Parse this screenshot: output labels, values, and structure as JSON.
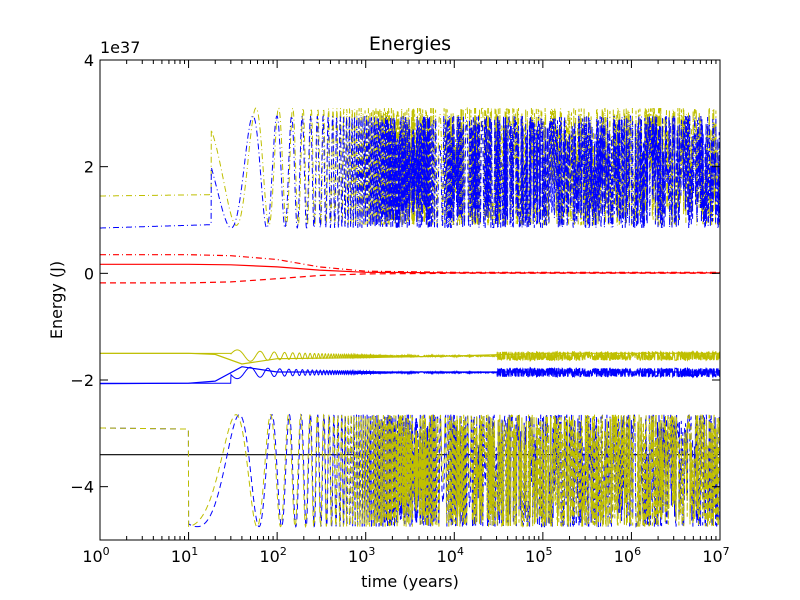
{
  "chart_data": {
    "type": "line",
    "title": "Energies",
    "xlabel": "time (years)",
    "ylabel": "Energy (J)",
    "y_offset_label": "1e37",
    "xscale": "log",
    "xlim": [
      1,
      10000000
    ],
    "ylim": [
      -5,
      4
    ],
    "x_tick_labels": [
      {
        "value": 1,
        "base": "10",
        "exp": "0"
      },
      {
        "value": 10,
        "base": "10",
        "exp": "1"
      },
      {
        "value": 100,
        "base": "10",
        "exp": "2"
      },
      {
        "value": 1000,
        "base": "10",
        "exp": "3"
      },
      {
        "value": 10000,
        "base": "10",
        "exp": "4"
      },
      {
        "value": 100000,
        "base": "10",
        "exp": "5"
      },
      {
        "value": 1000000,
        "base": "10",
        "exp": "6"
      },
      {
        "value": 10000000,
        "base": "10",
        "exp": "7"
      }
    ],
    "y_ticks": [
      {
        "value": 4,
        "label": "4"
      },
      {
        "value": 2,
        "label": "2"
      },
      {
        "value": 0,
        "label": "0"
      },
      {
        "value": -2,
        "label": "−2"
      },
      {
        "value": -4,
        "label": "−4"
      }
    ],
    "colors": {
      "yellow": "#bfbf00",
      "blue": "#0000ff",
      "red": "#ff0000",
      "black": "#000000"
    },
    "series": [
      {
        "id": "red-solid",
        "color": "red",
        "style": "solid",
        "x": [
          1,
          10,
          30,
          100,
          300,
          1000,
          10000,
          10000000
        ],
        "y": [
          0.17,
          0.17,
          0.16,
          0.12,
          0.06,
          0.02,
          0.01,
          0.01
        ]
      },
      {
        "id": "red-dashdot",
        "color": "red",
        "style": "dashdot",
        "x": [
          1,
          10,
          30,
          100,
          300,
          1000,
          10000,
          10000000
        ],
        "y": [
          0.35,
          0.35,
          0.33,
          0.26,
          0.12,
          0.04,
          0.02,
          0.02
        ]
      },
      {
        "id": "red-dashed",
        "color": "red",
        "style": "dashed",
        "x": [
          1,
          10,
          30,
          100,
          300,
          1000,
          10000,
          10000000
        ],
        "y": [
          -0.18,
          -0.18,
          -0.16,
          -0.1,
          -0.04,
          -0.01,
          0.0,
          0.0
        ]
      },
      {
        "id": "black-total",
        "color": "black",
        "style": "solid",
        "x": [
          1,
          10000000
        ],
        "y": [
          -3.4,
          -3.4
        ]
      },
      {
        "id": "yellow-band-upper",
        "color": "yellow",
        "style": "solid",
        "x": [
          1,
          10,
          20,
          40,
          100,
          1000,
          10000,
          100000,
          1000000,
          10000000
        ],
        "y": [
          -1.5,
          -1.5,
          -1.52,
          -1.7,
          -1.6,
          -1.58,
          -1.55,
          -1.5,
          -1.5,
          -1.5
        ]
      },
      {
        "id": "blue-band-lower",
        "color": "blue",
        "style": "solid",
        "x": [
          1,
          10,
          20,
          40,
          100,
          1000,
          10000,
          100000,
          1000000,
          10000000
        ],
        "y": [
          -2.07,
          -2.06,
          -2.02,
          -1.75,
          -1.85,
          -1.85,
          -1.85,
          -1.85,
          -1.85,
          -1.85
        ]
      }
    ]
  }
}
